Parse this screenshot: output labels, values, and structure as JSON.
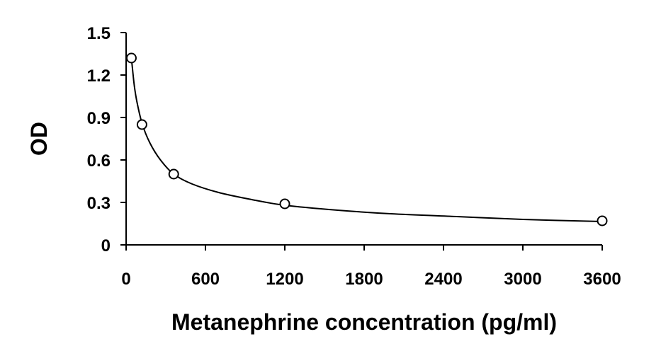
{
  "chart_data": {
    "type": "scatter",
    "title": "",
    "xlabel": "Metanephrine concentration (pg/ml)",
    "ylabel": "OD",
    "xlim": [
      0,
      3600
    ],
    "ylim": [
      0,
      1.5
    ],
    "xticks": [
      0,
      600,
      1200,
      1800,
      2400,
      3000,
      3600
    ],
    "yticks": [
      0,
      0.3,
      0.6,
      0.9,
      1.2,
      1.5
    ],
    "xtick_labels": [
      "0",
      "600",
      "1200",
      "1800",
      "2400",
      "3000",
      "3600"
    ],
    "ytick_labels": [
      "0",
      "0.3",
      "0.6",
      "0.9",
      "1.2",
      "1.5"
    ],
    "points": [
      {
        "x": 40,
        "y": 1.32
      },
      {
        "x": 120,
        "y": 0.85
      },
      {
        "x": 360,
        "y": 0.5
      },
      {
        "x": 1200,
        "y": 0.29
      },
      {
        "x": 3600,
        "y": 0.17
      }
    ],
    "fit_curve": {
      "type": "smooth",
      "points": [
        {
          "x": 40,
          "y": 1.32
        },
        {
          "x": 60,
          "y": 1.14
        },
        {
          "x": 80,
          "y": 1.02
        },
        {
          "x": 120,
          "y": 0.86
        },
        {
          "x": 180,
          "y": 0.72
        },
        {
          "x": 260,
          "y": 0.6
        },
        {
          "x": 360,
          "y": 0.5
        },
        {
          "x": 500,
          "y": 0.43
        },
        {
          "x": 700,
          "y": 0.37
        },
        {
          "x": 950,
          "y": 0.32
        },
        {
          "x": 1200,
          "y": 0.28
        },
        {
          "x": 1600,
          "y": 0.245
        },
        {
          "x": 2000,
          "y": 0.22
        },
        {
          "x": 2500,
          "y": 0.2
        },
        {
          "x": 3000,
          "y": 0.18
        },
        {
          "x": 3600,
          "y": 0.165
        }
      ]
    },
    "grid": false,
    "legend": "none",
    "colors": {
      "line": "#000000",
      "marker_stroke": "#000000",
      "marker_fill": "#ffffff",
      "axis": "#000000"
    }
  }
}
